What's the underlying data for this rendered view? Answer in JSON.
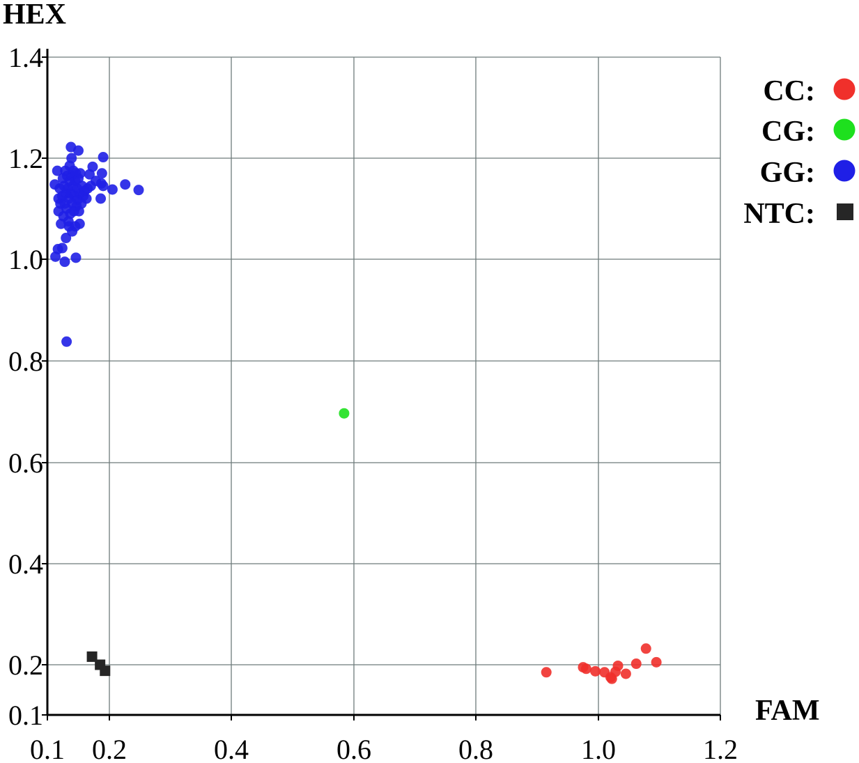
{
  "chart_data": {
    "type": "scatter",
    "title": "",
    "xlabel": "FAM",
    "ylabel": "HEX",
    "xlim": [
      0.1,
      1.2
    ],
    "ylim": [
      0.1,
      1.4
    ],
    "xticks": [
      "0.1",
      "0.2",
      "0.4",
      "0.6",
      "0.8",
      "1.0",
      "1.2"
    ],
    "yticks": [
      "0.1",
      "0.2",
      "0.4",
      "0.6",
      "0.8",
      "1.0",
      "1.2",
      "1.4"
    ],
    "grid": true,
    "legend_position": "top-right",
    "series": [
      {
        "name": "CC",
        "marker": "circle",
        "color": "#f0302b",
        "points": [
          [
            0.915,
            0.185
          ],
          [
            0.975,
            0.195
          ],
          [
            0.98,
            0.192
          ],
          [
            0.995,
            0.187
          ],
          [
            1.01,
            0.185
          ],
          [
            1.02,
            0.175
          ],
          [
            1.022,
            0.172
          ],
          [
            1.028,
            0.186
          ],
          [
            1.032,
            0.198
          ],
          [
            1.045,
            0.182
          ],
          [
            1.062,
            0.202
          ],
          [
            1.078,
            0.232
          ],
          [
            1.095,
            0.205
          ]
        ]
      },
      {
        "name": "CG",
        "marker": "circle",
        "color": "#1ee01e",
        "points": [
          [
            0.584,
            0.697
          ]
        ]
      },
      {
        "name": "GG",
        "marker": "circle",
        "color": "#1f1fe6",
        "points": [
          [
            0.113,
            1.005
          ],
          [
            0.117,
            1.02
          ],
          [
            0.124,
            1.022
          ],
          [
            0.128,
            0.995
          ],
          [
            0.131,
            0.838
          ],
          [
            0.13,
            1.042
          ],
          [
            0.135,
            1.065
          ],
          [
            0.14,
            1.055
          ],
          [
            0.146,
            1.003
          ],
          [
            0.152,
            1.07
          ],
          [
            0.112,
            1.148
          ],
          [
            0.116,
            1.175
          ],
          [
            0.118,
            1.12
          ],
          [
            0.118,
            1.095
          ],
          [
            0.12,
            1.14
          ],
          [
            0.121,
            1.11
          ],
          [
            0.122,
            1.07
          ],
          [
            0.124,
            1.125
          ],
          [
            0.125,
            1.16
          ],
          [
            0.126,
            1.085
          ],
          [
            0.127,
            1.145
          ],
          [
            0.128,
            1.11
          ],
          [
            0.129,
            1.175
          ],
          [
            0.13,
            1.13
          ],
          [
            0.131,
            1.1
          ],
          [
            0.132,
            1.165
          ],
          [
            0.133,
            1.14
          ],
          [
            0.134,
            1.075
          ],
          [
            0.135,
            1.12
          ],
          [
            0.136,
            1.185
          ],
          [
            0.136,
            1.155
          ],
          [
            0.137,
            1.09
          ],
          [
            0.138,
            1.13
          ],
          [
            0.139,
            1.2
          ],
          [
            0.139,
            1.165
          ],
          [
            0.14,
            1.11
          ],
          [
            0.141,
            1.145
          ],
          [
            0.142,
            1.175
          ],
          [
            0.143,
            1.095
          ],
          [
            0.144,
            1.125
          ],
          [
            0.145,
            1.155
          ],
          [
            0.146,
            1.17
          ],
          [
            0.147,
            1.105
          ],
          [
            0.148,
            1.14
          ],
          [
            0.149,
            1.118
          ],
          [
            0.15,
            1.16
          ],
          [
            0.151,
            1.095
          ],
          [
            0.152,
            1.13
          ],
          [
            0.153,
            1.17
          ],
          [
            0.155,
            1.11
          ],
          [
            0.156,
            1.145
          ],
          [
            0.158,
            1.125
          ],
          [
            0.16,
            1.135
          ],
          [
            0.163,
            1.12
          ],
          [
            0.165,
            1.14
          ],
          [
            0.168,
            1.168
          ],
          [
            0.17,
            1.145
          ],
          [
            0.173,
            1.183
          ],
          [
            0.178,
            1.155
          ],
          [
            0.186,
            1.12
          ],
          [
            0.187,
            1.15
          ],
          [
            0.188,
            1.17
          ],
          [
            0.19,
            1.202
          ],
          [
            0.19,
            1.145
          ],
          [
            0.205,
            1.138
          ],
          [
            0.138,
            1.222
          ],
          [
            0.15,
            1.215
          ],
          [
            0.226,
            1.148
          ],
          [
            0.248,
            1.137
          ],
          [
            0.145,
            1.065
          ]
        ]
      },
      {
        "name": "NTC",
        "marker": "square",
        "color": "#262626",
        "points": [
          [
            0.172,
            0.216
          ],
          [
            0.185,
            0.2
          ],
          [
            0.193,
            0.188
          ]
        ]
      }
    ]
  }
}
